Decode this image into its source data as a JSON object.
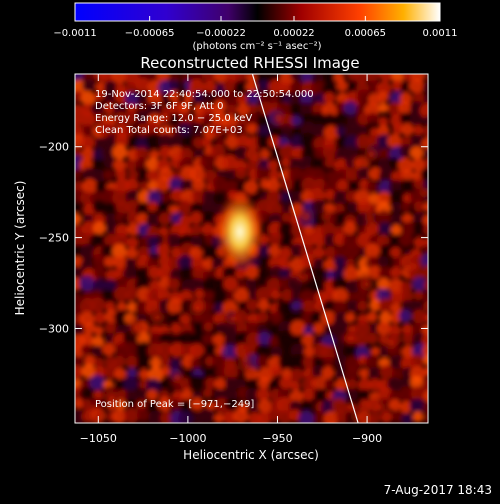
{
  "chart_data": {
    "type": "heatmap",
    "title": "Reconstructed RHESSI Image",
    "xlabel": "Heliocentric X (arcsec)",
    "ylabel": "Heliocentric Y (arcsec)",
    "xlim": [
      -1063,
      -866
    ],
    "ylim": [
      -352,
      -160
    ],
    "x_ticks": [
      {
        "value": -1050,
        "label": "−1050"
      },
      {
        "value": -1000,
        "label": "−1000"
      },
      {
        "value": -950,
        "label": "−950"
      },
      {
        "value": -900,
        "label": "−900"
      }
    ],
    "y_ticks": [
      {
        "value": -200,
        "label": "−200"
      },
      {
        "value": -250,
        "label": "−250"
      },
      {
        "value": -300,
        "label": "−300"
      }
    ],
    "colorbar": {
      "range": [
        -0.0011,
        0.0011
      ],
      "ticks": [
        {
          "value": -0.0011,
          "label": "−0.0011"
        },
        {
          "value": -0.00065,
          "label": "−0.00065"
        },
        {
          "value": -0.00022,
          "label": "−0.00022"
        },
        {
          "value": 0.00022,
          "label": "0.00022"
        },
        {
          "value": 0.00065,
          "label": "0.00065"
        },
        {
          "value": 0.0011,
          "label": "0.0011"
        }
      ],
      "unit_label": "(photons cm⁻² s⁻¹ asec⁻²)"
    },
    "info_lines": [
      "19-Nov-2014 22:40:54.000 to 22:50:54.000",
      "Detectors: 3F 6F 9F, Att 0",
      "Energy Range: 12.0 − 25.0 keV",
      "Clean     Total counts: 7.07E+03"
    ],
    "peak": {
      "x": -971,
      "y": -249,
      "label": "Position of Peak = [−971,−249]"
    },
    "limb_line": {
      "x_start": -964,
      "y_start": -160,
      "x_end": -905,
      "y_end": -352
    },
    "footer_date": "7-Aug-2017 18:43"
  }
}
